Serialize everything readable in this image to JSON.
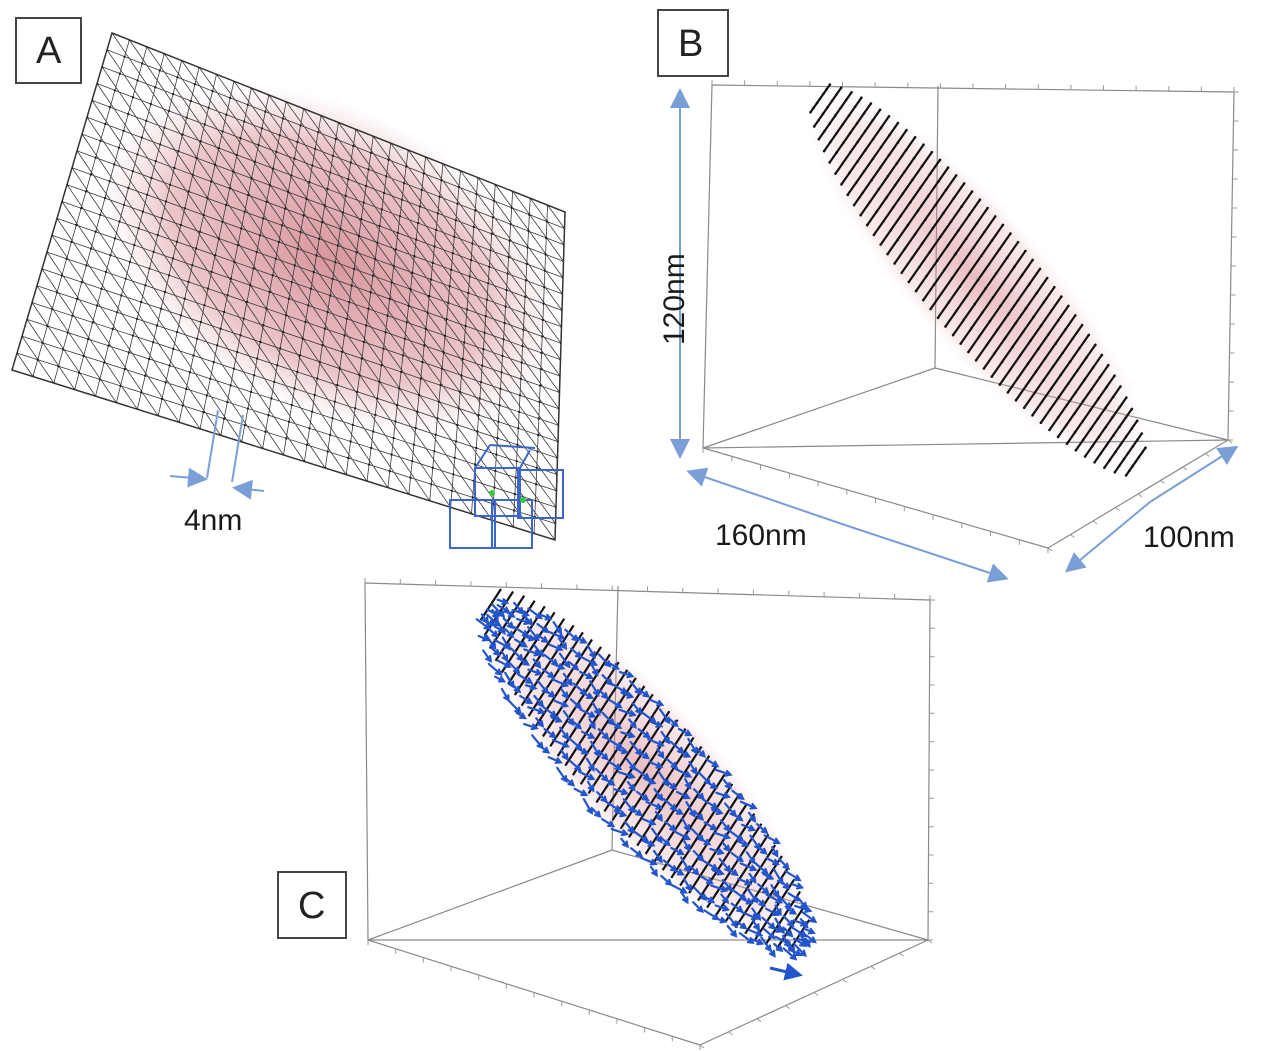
{
  "panels": {
    "a": {
      "label": "A",
      "dimension_label": "4nm"
    },
    "b": {
      "label": "B",
      "dimensions": {
        "height": "120nm",
        "length": "160nm",
        "depth": "100nm"
      }
    },
    "c": {
      "label": "C"
    }
  },
  "colors": {
    "mesh_line": "#3a3a3a",
    "density_cloud": "#c0505a",
    "cell_outline": "#3a66cc",
    "dimension_arrow": "#7a9fd6",
    "contour_line": "#111111",
    "vector_arrow": "#2255cc",
    "axis_box": "#888888",
    "label_box_border": "#444444"
  },
  "icons": {
    "mesh_node": "dot-icon",
    "vector": "arrow-icon"
  }
}
